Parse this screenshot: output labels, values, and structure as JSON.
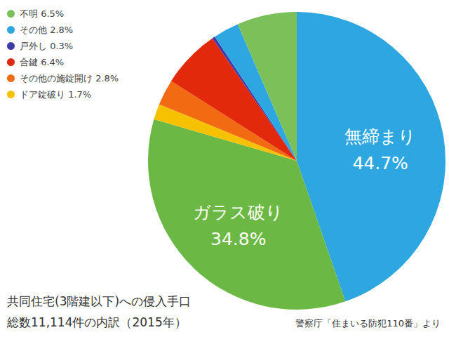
{
  "chart_data": {
    "type": "pie",
    "title": "共同住宅(3階建以下)への侵入手口",
    "subtitle": "総数11,114件の内訳（2015年）",
    "annotation": "警察庁「住まいる防犯110番」より",
    "categories": [
      "無締まり",
      "ガラス破り",
      "ドア錠破り",
      "その他の施錠開け",
      "合鍵",
      "戸外し",
      "その他",
      "不明"
    ],
    "values": [
      44.7,
      34.8,
      1.7,
      2.8,
      6.4,
      0.3,
      2.8,
      6.5
    ],
    "value_labels": [
      "44.7%",
      "34.8%",
      "1.7%",
      "2.8%",
      "6.4%",
      "0.3%",
      "2.8%",
      "6.5%"
    ],
    "colors": [
      "#2ea7e0",
      "#6cb844",
      "#f6c200",
      "#f26b12",
      "#e3290b",
      "#3b3aa8",
      "#2ea7e0",
      "#7cc05a"
    ],
    "data_labels": true,
    "legend": "top-left"
  }
}
